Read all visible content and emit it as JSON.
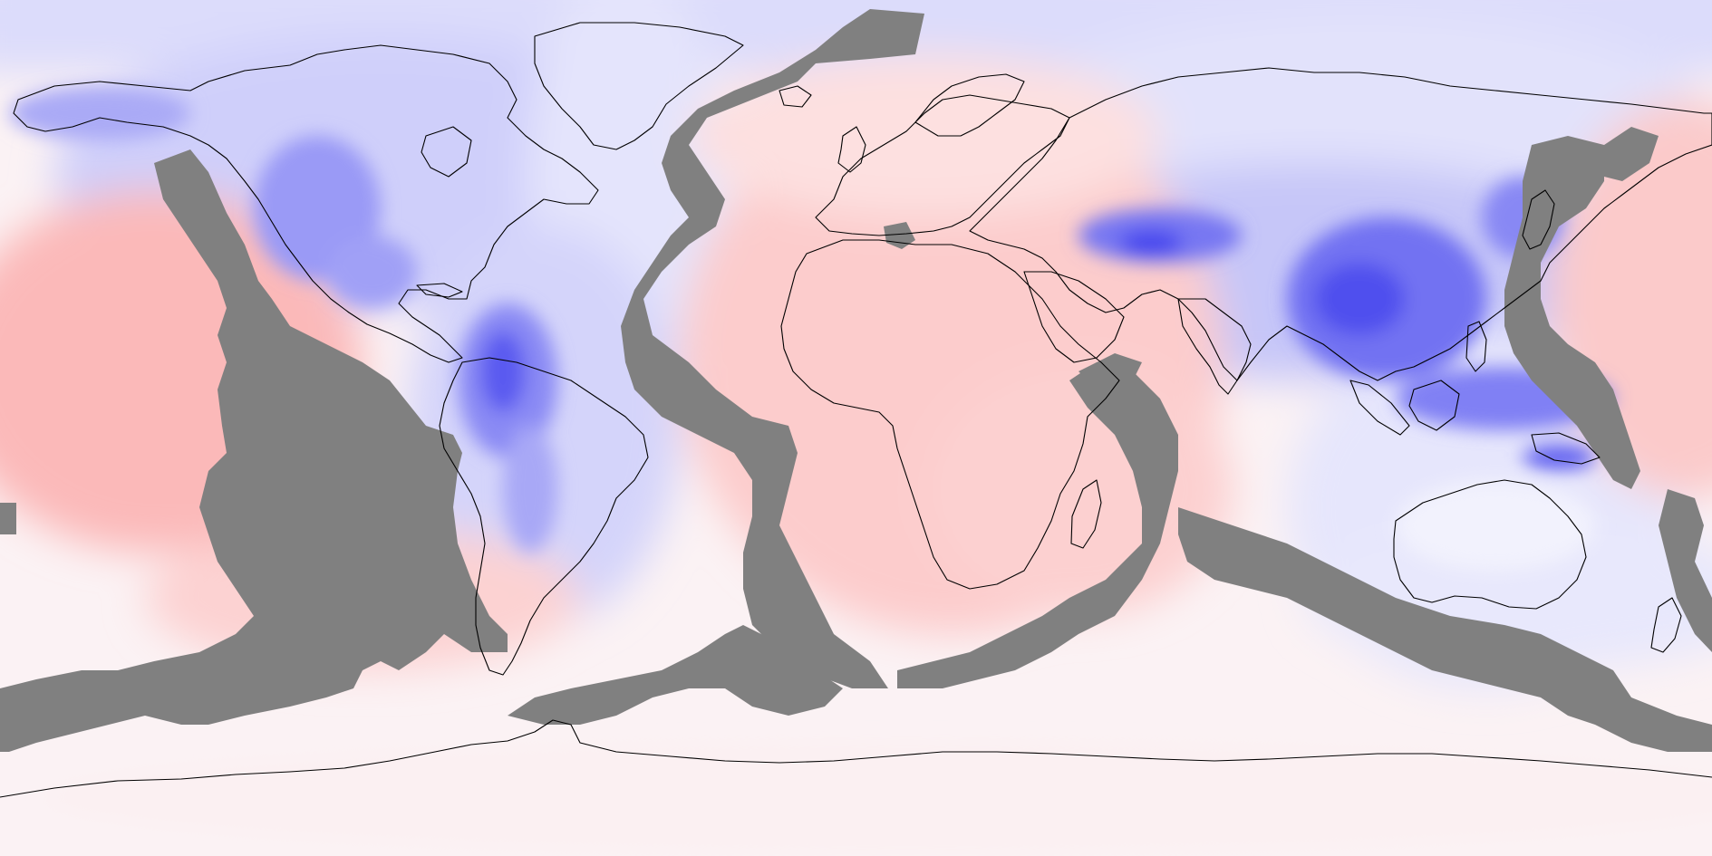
{
  "map": {
    "projection": "equirectangular",
    "extent": {
      "lon": [
        -180,
        180
      ],
      "lat": [
        -90,
        90
      ]
    },
    "fill_style": "filled contours, no colorbar, no labels",
    "palette": {
      "strong_negative": "#3a3af0",
      "mid_negative": "#9a9af6",
      "weak_negative": "#dcdcfb",
      "neutral": "#fbf4f6",
      "weak_positive": "#fde0e0",
      "mid_positive": "#fcc6c6",
      "strong_positive": "#fa9a9a",
      "plate_boundary_mask": "#808080",
      "coastline": "#000000"
    },
    "layers": [
      "anomaly-field",
      "plate-boundary-mask",
      "coastlines"
    ]
  }
}
